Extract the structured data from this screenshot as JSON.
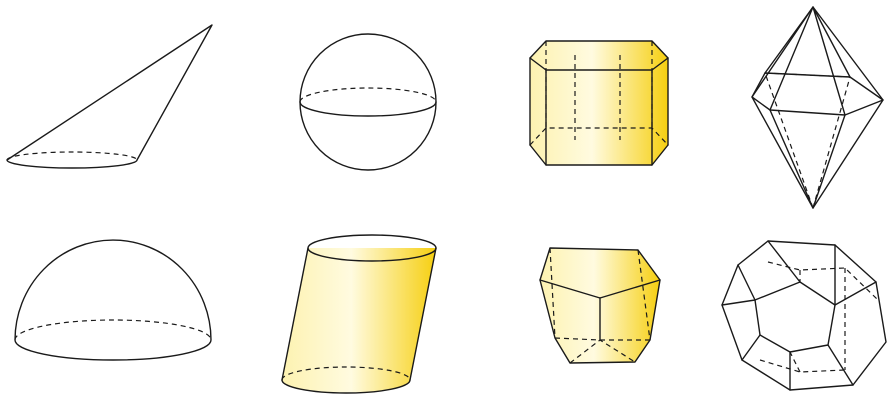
{
  "figure": {
    "shapes": [
      {
        "name": "oblique-cone",
        "color": "#F7D528"
      },
      {
        "name": "sphere",
        "color": "#1C86D8"
      },
      {
        "name": "hexagonal-prism",
        "color": "#F7D528"
      },
      {
        "name": "hexagonal-bipyramid",
        "color": "#F7D528"
      },
      {
        "name": "hemisphere",
        "color": "#1C86D8"
      },
      {
        "name": "oblique-cylinder",
        "color": "#F7D528"
      },
      {
        "name": "pentagonal-frustum",
        "color": "#F7D528"
      },
      {
        "name": "dodecahedron",
        "color": "#1C86D8"
      }
    ]
  }
}
